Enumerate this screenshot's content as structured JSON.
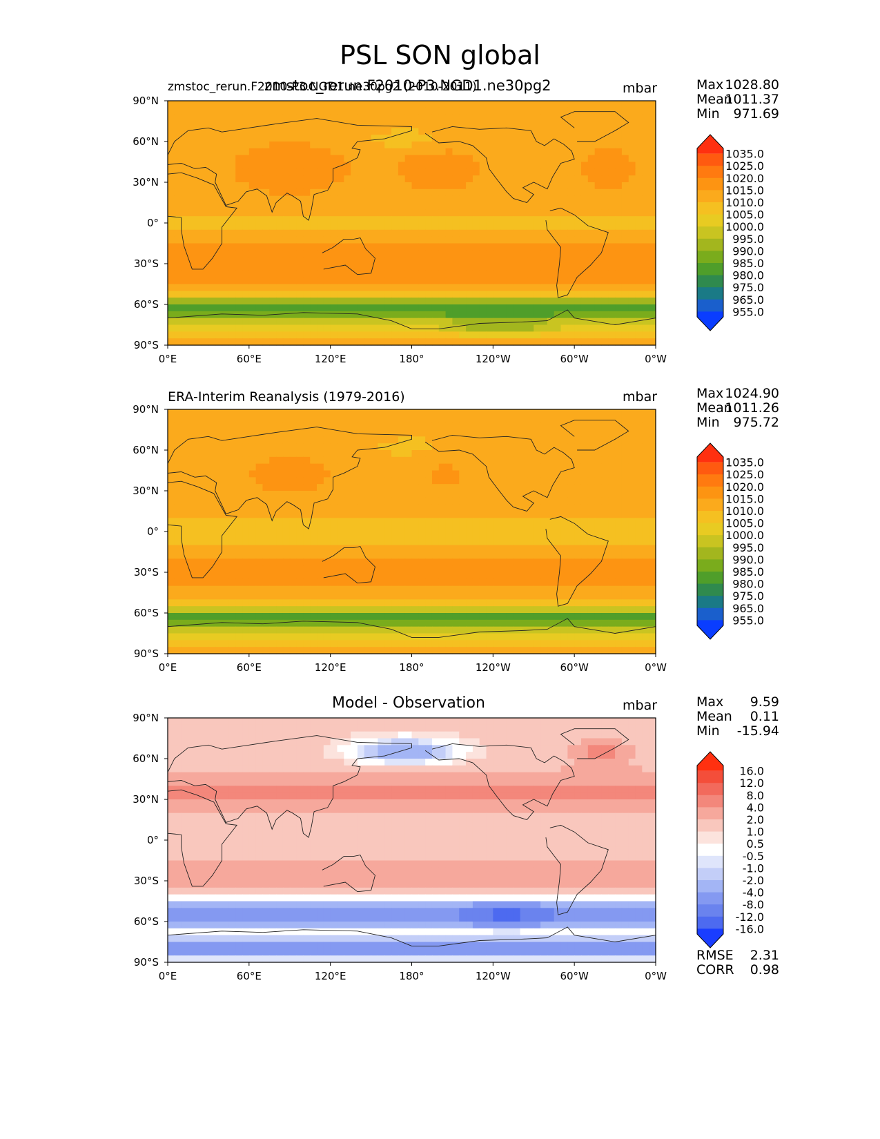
{
  "main_title": "PSL SON global",
  "chart_data": [
    {
      "type": "heatmap",
      "title": "zmstoc_rerun.F2010-P3.NGD1.ne30pg2",
      "subtitle_left": "zmstoc_rerun.F2010-P3.NGD1.ne30pg2 (2010-2011)",
      "units": "mbar",
      "stats": [
        {
          "label": "Max",
          "value": "1028.80"
        },
        {
          "label": "Mean",
          "value": "1011.37"
        },
        {
          "label": "Min",
          "value": "971.69"
        }
      ],
      "xticks": [
        "0°E",
        "60°E",
        "120°E",
        "180°",
        "120°W",
        "60°W",
        "0°W"
      ],
      "yticks": [
        "90°N",
        "60°N",
        "30°N",
        "0°",
        "30°S",
        "60°S",
        "90°S"
      ],
      "colorbar": {
        "labels": [
          "1035.0",
          "1025.0",
          "1020.0",
          "1015.0",
          "1010.0",
          "1005.0",
          "1000.0",
          "995.0",
          "990.0",
          "985.0",
          "980.0",
          "975.0",
          "965.0",
          "955.0"
        ],
        "colors": [
          "#ff3010",
          "#ff5a10",
          "#ff7a10",
          "#fd9412",
          "#fbaa1c",
          "#f5c021",
          "#e8cb22",
          "#c9c421",
          "#a3b61e",
          "#7aac1c",
          "#4f9e2a",
          "#2f8a4e",
          "#1a7a86",
          "#1a5fcc",
          "#0a3dff"
        ]
      },
      "field_pattern": "model"
    },
    {
      "type": "heatmap",
      "title": "ERA-Interim Reanalysis (1979-2016)",
      "units": "mbar",
      "stats": [
        {
          "label": "Max",
          "value": "1024.90"
        },
        {
          "label": "Mean",
          "value": "1011.26"
        },
        {
          "label": "Min",
          "value": "975.72"
        }
      ],
      "xticks": [
        "0°E",
        "60°E",
        "120°E",
        "180°",
        "120°W",
        "60°W",
        "0°W"
      ],
      "yticks": [
        "90°N",
        "60°N",
        "30°N",
        "0°",
        "30°S",
        "60°S",
        "90°S"
      ],
      "colorbar": {
        "labels": [
          "1035.0",
          "1025.0",
          "1020.0",
          "1015.0",
          "1010.0",
          "1005.0",
          "1000.0",
          "995.0",
          "990.0",
          "985.0",
          "980.0",
          "975.0",
          "965.0",
          "955.0"
        ],
        "colors": [
          "#ff3010",
          "#ff5a10",
          "#ff7a10",
          "#fd9412",
          "#fbaa1c",
          "#f5c021",
          "#e8cb22",
          "#c9c421",
          "#a3b61e",
          "#7aac1c",
          "#4f9e2a",
          "#2f8a4e",
          "#1a7a86",
          "#1a5fcc",
          "#0a3dff"
        ]
      },
      "field_pattern": "obs"
    },
    {
      "type": "heatmap",
      "title": "Model - Observation",
      "units": "mbar",
      "stats": [
        {
          "label": "Max",
          "value": "9.59"
        },
        {
          "label": "Mean",
          "value": "0.11"
        },
        {
          "label": "Min",
          "value": "-15.94"
        }
      ],
      "extra_stats": [
        {
          "label": "RMSE",
          "value": "2.31"
        },
        {
          "label": "CORR",
          "value": "0.98"
        }
      ],
      "xticks": [
        "0°E",
        "60°E",
        "120°E",
        "180°",
        "120°W",
        "60°W",
        "0°W"
      ],
      "yticks": [
        "90°N",
        "60°N",
        "30°N",
        "0°",
        "30°S",
        "60°S",
        "90°S"
      ],
      "colorbar": {
        "labels": [
          "16.0",
          "12.0",
          "8.0",
          "4.0",
          "2.0",
          "1.0",
          "0.5",
          "-0.5",
          "-1.0",
          "-2.0",
          "-4.0",
          "-8.0",
          "-12.0",
          "-16.0"
        ],
        "colors": [
          "#ff3010",
          "#f44e3a",
          "#f26a5c",
          "#f3877b",
          "#f6a89c",
          "#f9c7bd",
          "#fce3dd",
          "#ffffff",
          "#dfe5fb",
          "#c3cef8",
          "#a3b5f5",
          "#8499f1",
          "#6a83ee",
          "#4d6af0",
          "#1a3dff"
        ]
      },
      "field_pattern": "diff"
    }
  ]
}
